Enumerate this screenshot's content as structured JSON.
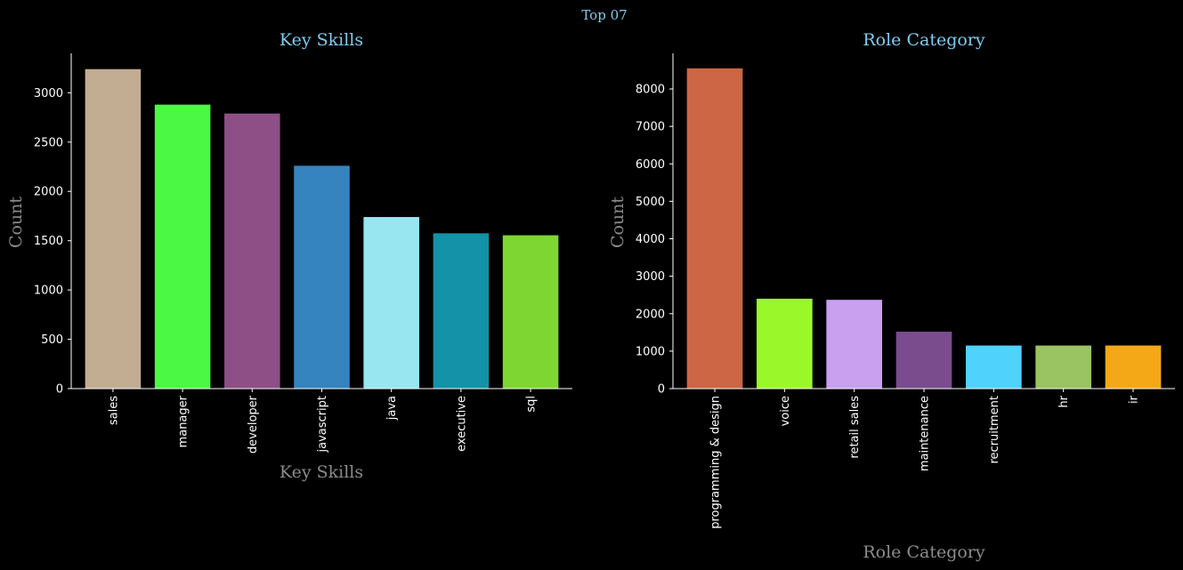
{
  "figure": {
    "suptitle": "Top 07"
  },
  "chart_data": [
    {
      "type": "bar",
      "title": "Key Skills",
      "xlabel": "Key Skills",
      "ylabel": "Count",
      "categories": [
        "sales",
        "manager",
        "developer",
        "javascript",
        "java",
        "executive",
        "sql"
      ],
      "values": [
        3240,
        2880,
        2790,
        2260,
        1740,
        1575,
        1555
      ],
      "colors": [
        "#c2ad92",
        "#4bf843",
        "#8d4f85",
        "#3584c0",
        "#97e6f0",
        "#1392a8",
        "#7dd632"
      ],
      "yticks": [
        0,
        500,
        1000,
        1500,
        2000,
        2500,
        3000
      ],
      "ylim": [
        0,
        3400
      ],
      "grid": false,
      "legend": "none"
    },
    {
      "type": "bar",
      "title": "Role Category",
      "xlabel": "Role Category",
      "ylabel": "Count",
      "categories": [
        "programming & design",
        "voice",
        "retail sales",
        "maintenance",
        "recruitment",
        "hr",
        "ir"
      ],
      "values": [
        8550,
        2400,
        2370,
        1520,
        1150,
        1150,
        1150
      ],
      "colors": [
        "#cc6644",
        "#9af82a",
        "#c99ff0",
        "#7a4c8d",
        "#4fd2fc",
        "#9ac362",
        "#f4a817"
      ],
      "yticks": [
        0,
        1000,
        2000,
        3000,
        4000,
        5000,
        6000,
        7000,
        8000
      ],
      "ylim": [
        0,
        8950
      ],
      "grid": false,
      "legend": "none"
    }
  ]
}
